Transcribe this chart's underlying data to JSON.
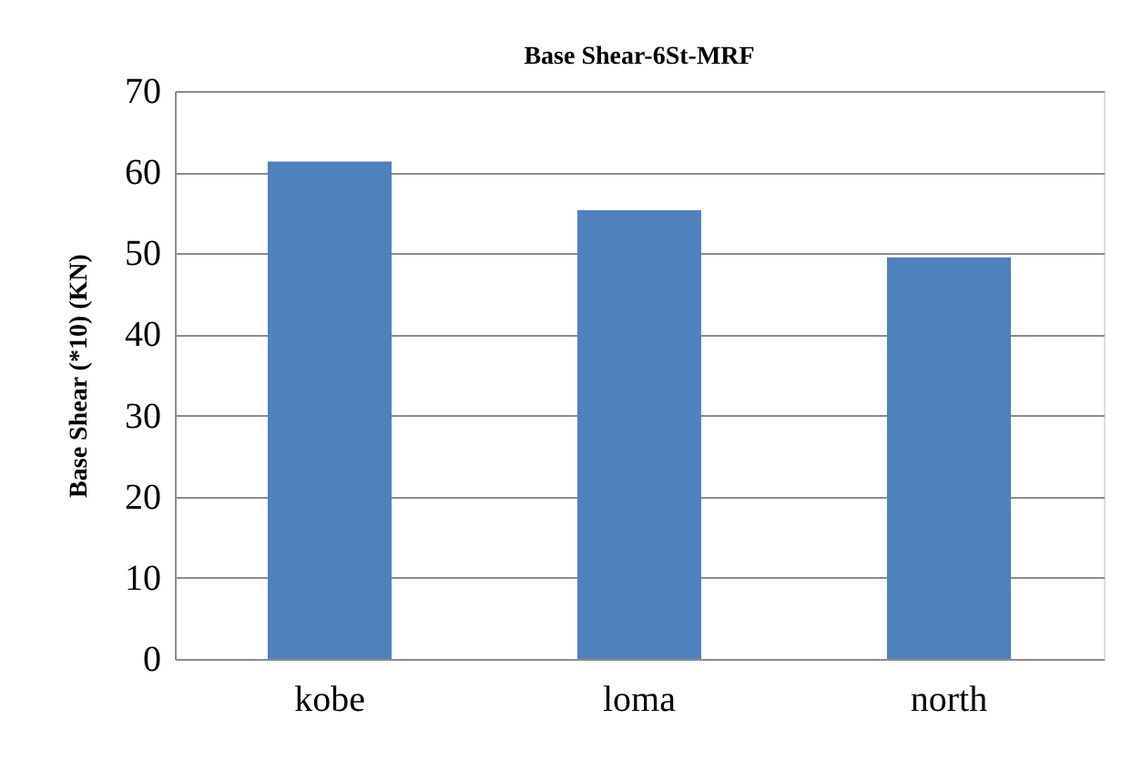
{
  "chart_data": {
    "type": "bar",
    "title": "Base Shear-6St-MRF",
    "ylabel": "Base Shear (*10) (KN)",
    "categories": [
      "kobe",
      "loma",
      "north"
    ],
    "values": [
      61.3,
      55.3,
      49.5
    ],
    "color": "#4f81bd",
    "ylim": [
      0,
      70
    ],
    "yticks": [
      0,
      10,
      20,
      30,
      40,
      50,
      60,
      70
    ],
    "grid": "y"
  }
}
